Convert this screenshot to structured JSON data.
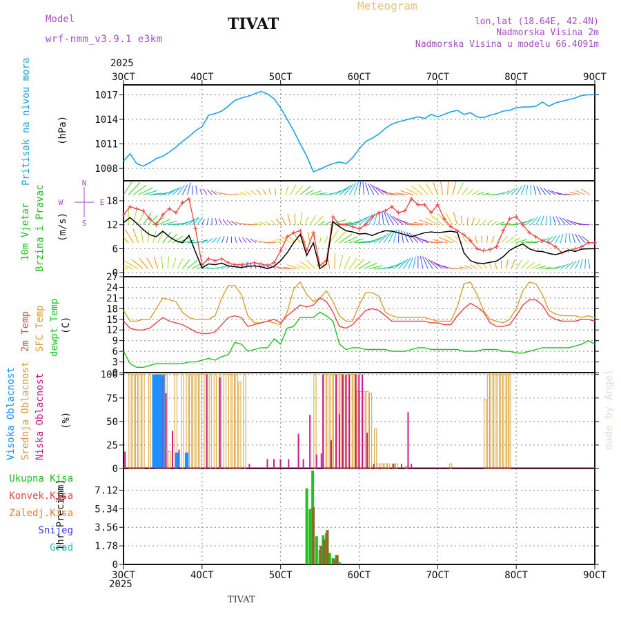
{
  "header": {
    "model_label": "Model",
    "model_name": "wrf-nmm_v3.9.1 e3km",
    "station_title": "TIVAT",
    "meteogram_label": "Meteogram",
    "lonlat": "lon,lat (18.64E, 42.4N)",
    "altitude": "Nadmorska Visina 2m",
    "model_altitude": "Nadmorska Visina u modelu 66.4091m"
  },
  "footer": {
    "station": "TIVAT",
    "watermark": "made by Angel"
  },
  "colors": {
    "pressure": "#1aa3e6",
    "wind_speed": "#000000",
    "wind_gust": "#f04040",
    "temp2m": "#e84545",
    "sfc_temp": "#d9a030",
    "dewpoint": "#22c022",
    "high_cloud": "#1e90ff",
    "mid_cloud": "#d9a030",
    "low_cloud": "#cc1a88",
    "total_precip": "#22c022",
    "conv_precip": "#e84545",
    "frz_precip": "#f07a20",
    "snow": "#3c3ce6",
    "graupel": "#20c0c0",
    "title_purple": "#a64cc4"
  },
  "chart_data": [
    {
      "type": "line",
      "panel": "pressure",
      "ylabel_line1": "Pritisak na nivou mora",
      "ylabel_unit": "(hPa)",
      "x_ticks": [
        "3OCT",
        "4OCT",
        "5OCT",
        "6OCT",
        "7OCT",
        "8OCT",
        "9OCT"
      ],
      "x_top_year": "2025",
      "ylim": [
        1006.5,
        1018.2
      ],
      "y_ticks": [
        "1008",
        "1011",
        "1014",
        "1017"
      ],
      "x": [
        0,
        2,
        4,
        6,
        8,
        10,
        12,
        14,
        16,
        18,
        20,
        22,
        24,
        26,
        28,
        30,
        32,
        34,
        36,
        38,
        40,
        42,
        44,
        46,
        48,
        50,
        52,
        54,
        56,
        58,
        60,
        62,
        64,
        66,
        68,
        70,
        72,
        74,
        76,
        78,
        80,
        82,
        84,
        86,
        88,
        90,
        92,
        94,
        96,
        98,
        100,
        102,
        104,
        106,
        108,
        110,
        112,
        114,
        116,
        118,
        120,
        122,
        124,
        126,
        128,
        130,
        132,
        134,
        136,
        138,
        140,
        142,
        144
      ],
      "series": [
        {
          "name": "MSLP",
          "values": [
            1008.9,
            1009.8,
            1008.6,
            1008.3,
            1008.7,
            1009.2,
            1009.5,
            1010.0,
            1010.6,
            1011.3,
            1011.9,
            1012.6,
            1013.1,
            1014.5,
            1014.7,
            1015.0,
            1015.6,
            1016.3,
            1016.6,
            1016.8,
            1017.1,
            1017.4,
            1017.1,
            1016.5,
            1015.4,
            1014.0,
            1012.6,
            1011.0,
            1009.5,
            1007.6,
            1007.9,
            1008.3,
            1008.6,
            1008.8,
            1008.6,
            1009.3,
            1010.4,
            1011.3,
            1011.7,
            1012.2,
            1012.9,
            1013.4,
            1013.7,
            1013.9,
            1014.1,
            1014.3,
            1014.1,
            1014.6,
            1014.3,
            1014.6,
            1014.9,
            1015.1,
            1014.6,
            1014.8,
            1014.3,
            1014.2,
            1014.5,
            1014.7,
            1015.0,
            1015.1,
            1015.4,
            1015.5,
            1015.5,
            1015.6,
            1016.1,
            1015.6,
            1016.0,
            1016.2,
            1016.4,
            1016.6,
            1016.9,
            1017.0,
            1017.0
          ]
        }
      ]
    },
    {
      "type": "line",
      "panel": "wind",
      "ylabel_line1": "10m Vjetar",
      "ylabel_line2": "Brzina i Pravac",
      "ylabel_unit": "(m/s)",
      "compass": {
        "north": "N",
        "south": "S",
        "east": "E",
        "west": "W"
      },
      "ylim": [
        -1,
        23
      ],
      "y_ticks": [
        "0",
        "6",
        "12",
        "18"
      ],
      "x": [
        0,
        2,
        4,
        6,
        8,
        10,
        12,
        14,
        16,
        18,
        20,
        22,
        24,
        26,
        28,
        30,
        32,
        34,
        36,
        38,
        40,
        42,
        44,
        46,
        48,
        50,
        52,
        54,
        56,
        58,
        60,
        62,
        64,
        66,
        68,
        70,
        72,
        74,
        76,
        78,
        80,
        82,
        84,
        86,
        88,
        90,
        92,
        94,
        96,
        98,
        100,
        102,
        104,
        106,
        108,
        110,
        112,
        114,
        116,
        118,
        120,
        122,
        124,
        126,
        128,
        130,
        132,
        134,
        136,
        138,
        140,
        142,
        144
      ],
      "series": [
        {
          "name": "wind speed",
          "values": [
            12.5,
            13.8,
            12.4,
            10.8,
            9.5,
            9.0,
            10.4,
            9.0,
            8.0,
            7.5,
            9.3,
            5.2,
            1.2,
            2.2,
            2.0,
            2.4,
            1.7,
            1.5,
            1.3,
            1.6,
            1.7,
            1.5,
            1.0,
            1.6,
            3.0,
            5.0,
            7.5,
            9.6,
            4.3,
            7.5,
            1.0,
            2.2,
            12.8,
            11.5,
            10.5,
            10.2,
            9.7,
            9.8,
            9.3,
            10.0,
            10.5,
            10.4,
            10.0,
            9.5,
            9.0,
            9.5,
            10.0,
            10.2,
            10.0,
            10.2,
            10.4,
            10.1,
            5.0,
            3.0,
            2.4,
            2.3,
            2.6,
            2.9,
            4.0,
            5.6,
            6.5,
            7.2,
            6.0,
            5.4,
            5.3,
            4.8,
            4.5,
            5.0,
            5.7,
            5.3,
            5.9,
            6.0,
            6.0
          ]
        },
        {
          "name": "wind gust",
          "values": [
            14.5,
            16.5,
            16.0,
            15.5,
            13.5,
            12.0,
            14.5,
            16.0,
            15.0,
            17.5,
            18.5,
            11.0,
            2.0,
            3.5,
            3.0,
            3.5,
            2.5,
            2.0,
            2.0,
            2.2,
            2.5,
            2.2,
            1.8,
            2.5,
            5.5,
            9.0,
            10.0,
            10.5,
            5.5,
            10.0,
            1.8,
            3.0,
            14.0,
            12.0,
            12.0,
            11.5,
            11.0,
            12.0,
            14.0,
            15.0,
            15.5,
            16.5,
            15.0,
            15.5,
            18.5,
            17.0,
            17.0,
            15.0,
            17.0,
            13.5,
            11.5,
            10.5,
            9.5,
            8.0,
            6.0,
            5.5,
            5.8,
            6.5,
            10.5,
            13.5,
            14.0,
            12.0,
            10.0,
            9.0,
            8.0,
            7.5,
            6.5,
            5.0,
            5.5,
            6.0,
            6.5,
            7.5,
            7.5
          ]
        }
      ],
      "arrow_rows_y": [
        1,
        7.5,
        12,
        19.5
      ]
    },
    {
      "type": "line",
      "panel": "temperature",
      "ylabel_line1": "2m Temp",
      "ylabel_line2": "SFC Temp",
      "ylabel_line3": "dewpt Temp",
      "ylabel_unit": "(C)",
      "ylim": [
        0,
        27
      ],
      "y_ticks": [
        "0",
        "3",
        "6",
        "9",
        "12",
        "15",
        "18",
        "21",
        "24",
        "27"
      ],
      "x": [
        0,
        2,
        4,
        6,
        8,
        10,
        12,
        14,
        16,
        18,
        20,
        22,
        24,
        26,
        28,
        30,
        32,
        34,
        36,
        38,
        40,
        42,
        44,
        46,
        48,
        50,
        52,
        54,
        56,
        58,
        60,
        62,
        64,
        66,
        68,
        70,
        72,
        74,
        76,
        78,
        80,
        82,
        84,
        86,
        88,
        90,
        92,
        94,
        96,
        98,
        100,
        102,
        104,
        106,
        108,
        110,
        112,
        114,
        116,
        118,
        120,
        122,
        124,
        126,
        128,
        130,
        132,
        134,
        136,
        138,
        140,
        142,
        144
      ],
      "series": [
        {
          "name": "2m Temp",
          "values": [
            14.5,
            12.5,
            12.0,
            12.0,
            12.5,
            14.0,
            15.5,
            14.5,
            14.0,
            13.5,
            12.5,
            11.5,
            11.0,
            11.0,
            11.5,
            13.5,
            15.5,
            16.0,
            15.5,
            13.0,
            13.5,
            14.0,
            14.5,
            15.0,
            14.0,
            16.0,
            17.5,
            19.0,
            18.5,
            19.0,
            21.0,
            20.0,
            17.0,
            13.0,
            12.5,
            13.5,
            15.5,
            17.5,
            18.0,
            17.5,
            16.0,
            14.5,
            14.5,
            14.5,
            14.5,
            14.5,
            14.5,
            14.0,
            14.0,
            13.5,
            13.5,
            16.0,
            18.0,
            19.5,
            18.5,
            17.0,
            14.0,
            13.0,
            13.0,
            13.5,
            16.0,
            19.0,
            20.5,
            20.5,
            19.0,
            16.0,
            15.0,
            14.5,
            14.5,
            14.5,
            15.0,
            15.0,
            14.5
          ]
        },
        {
          "name": "SFC Temp",
          "values": [
            17.5,
            14.5,
            14.5,
            15.0,
            15.0,
            18.0,
            21.0,
            20.5,
            20.0,
            17.0,
            15.5,
            15.0,
            15.0,
            15.0,
            16.0,
            21.0,
            24.5,
            24.5,
            22.0,
            16.0,
            14.0,
            14.0,
            14.5,
            14.0,
            13.5,
            17.0,
            23.5,
            25.5,
            22.0,
            20.0,
            21.0,
            23.0,
            20.0,
            16.0,
            14.5,
            14.5,
            19.0,
            22.5,
            22.5,
            21.5,
            17.0,
            16.0,
            15.5,
            15.5,
            15.5,
            15.5,
            15.5,
            15.0,
            14.5,
            14.5,
            14.5,
            18.5,
            25.0,
            25.5,
            22.0,
            17.5,
            15.0,
            14.5,
            14.0,
            15.0,
            18.0,
            23.0,
            25.5,
            25.0,
            22.0,
            17.5,
            16.5,
            16.0,
            16.0,
            16.0,
            15.5,
            16.0,
            15.5
          ]
        },
        {
          "name": "dewpt Temp",
          "values": [
            6.0,
            2.5,
            1.5,
            1.5,
            2.0,
            2.5,
            2.5,
            2.5,
            2.5,
            2.5,
            3.0,
            3.0,
            3.5,
            4.0,
            3.5,
            4.5,
            5.0,
            8.5,
            8.0,
            6.0,
            6.5,
            7.0,
            7.0,
            9.5,
            8.0,
            12.5,
            13.0,
            15.5,
            15.5,
            15.5,
            17.0,
            16.0,
            14.5,
            8.0,
            6.5,
            7.0,
            7.0,
            6.5,
            6.5,
            6.5,
            6.5,
            6.0,
            6.0,
            6.0,
            6.5,
            7.0,
            7.0,
            6.5,
            6.5,
            6.5,
            6.5,
            6.5,
            6.0,
            6.0,
            6.0,
            6.5,
            6.5,
            6.5,
            6.0,
            6.0,
            5.5,
            5.5,
            6.0,
            6.5,
            7.0,
            7.0,
            7.0,
            7.0,
            7.0,
            7.5,
            8.0,
            9.0,
            8.0
          ]
        }
      ]
    },
    {
      "type": "bar",
      "panel": "clouds",
      "ylabel_line1": "Visoka Oblacnost",
      "ylabel_line2": "Srednja Oblacnost",
      "ylabel_line3": "Niska Oblacnost",
      "ylabel_unit": "(%)",
      "ylim": [
        0,
        102
      ],
      "y_ticks": [
        "0",
        "25",
        "50",
        "75",
        "100"
      ],
      "series": [
        {
          "name": "Visoka Oblacnost",
          "x": [
            9.0,
            9.5,
            10.0,
            10.5,
            11.0,
            11.5,
            12.2,
            16.0,
            16.5,
            19.0,
            19.5
          ],
          "values": [
            100,
            100,
            100,
            100,
            100,
            100,
            100,
            17,
            17,
            17,
            17
          ]
        },
        {
          "name": "Srednja Oblacnost",
          "x": [
            2.0,
            3.0,
            4.0,
            5.0,
            6.0,
            8.0,
            10.0,
            11.0,
            12.0,
            13.0,
            14.0,
            16.0,
            18.0,
            19.5,
            20.5,
            21.5,
            22.5,
            23.5,
            25.0,
            26.5,
            28.0,
            29.5,
            31.0,
            32.5,
            33.5,
            34.5,
            35.5,
            37.0,
            58.5,
            61.5,
            62.5,
            63.5,
            64.5,
            65.5,
            66.5,
            67.0,
            67.5,
            68.5,
            69.5,
            70.5,
            71.0,
            71.5,
            72.5,
            73.5,
            74.5,
            75.5,
            77.0,
            77.8,
            79.0,
            80.0,
            81.0,
            82.5,
            83.5,
            86.5,
            100.0,
            110.5,
            111.5,
            112.5,
            113.5,
            114.5,
            115.5,
            116.5,
            117.5,
            118.0
          ],
          "values": [
            100,
            100,
            100,
            100,
            100,
            100,
            100,
            100,
            100,
            100,
            18,
            100,
            100,
            100,
            100,
            100,
            100,
            100,
            100,
            100,
            100,
            100,
            100,
            100,
            100,
            100,
            92,
            100,
            100,
            100,
            100,
            100,
            100,
            100,
            100,
            100,
            97,
            100,
            100,
            100,
            100,
            82,
            82,
            82,
            82,
            80,
            42,
            5,
            5,
            5,
            5,
            5,
            5,
            2,
            5,
            73,
            100,
            100,
            100,
            100,
            100,
            100,
            100,
            100
          ]
        },
        {
          "name": "Niska Oblacnost",
          "x": [
            0.5,
            12.0,
            13.0,
            15.0,
            17.0,
            25.5,
            29.5,
            38.5,
            44.0,
            46.0,
            48.0,
            50.5,
            53.5,
            55.0,
            57.0,
            59.0,
            60.5,
            61.0,
            63.5,
            65.0,
            66.0,
            67.0,
            68.0,
            69.0,
            71.0,
            72.0,
            73.0,
            74.5,
            76.5,
            82.5,
            85.0,
            87.0,
            88.0,
            99.0
          ],
          "values": [
            18,
            98,
            80,
            40,
            20,
            100,
            97,
            5,
            10,
            10,
            10,
            10,
            37,
            10,
            57,
            15,
            16,
            100,
            30,
            100,
            58,
            100,
            100,
            100,
            100,
            100,
            100,
            38,
            5,
            5,
            5,
            60,
            5,
            1
          ]
        }
      ]
    },
    {
      "type": "bar",
      "panel": "precipitation",
      "ylabel_line1": "1hr Precip",
      "ylabel_unit": "(mm)",
      "legend": [
        "Ukupna Kisa",
        "Konvek.Kisa",
        "Zaledj.Kisa",
        "Snijeg",
        "Grad"
      ],
      "ylim": [
        0,
        9.2
      ],
      "y_ticks": [
        "0",
        "1.78",
        "3.56",
        "5.34",
        "7.12"
      ],
      "x_ticks": [
        "3OCT",
        "4OCT",
        "5OCT",
        "6OCT",
        "7OCT",
        "8OCT",
        "9OCT"
      ],
      "x_bottom_year": "2025",
      "series": [
        {
          "name": "Ukupna Kisa",
          "x": [
            56.0,
            57.0,
            57.8,
            59.0,
            60.0,
            61.0,
            62.0,
            63.0,
            64.0,
            65.0,
            66.0
          ],
          "values": [
            7.3,
            5.3,
            9.0,
            2.7,
            1.4,
            2.8,
            3.0,
            1.1,
            0.6,
            0.9,
            0.2
          ]
        },
        {
          "name": "Konvek.Kisa",
          "x": [
            58.0,
            60.3,
            61.3,
            62.3,
            64.3,
            65.3
          ],
          "values": [
            5.5,
            1.8,
            2.4,
            3.3,
            0.5,
            0.9
          ]
        }
      ]
    }
  ]
}
